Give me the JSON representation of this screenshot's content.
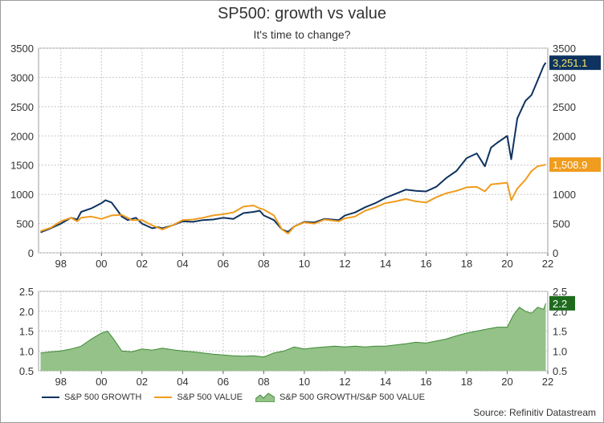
{
  "title": "SP500: growth vs value",
  "subtitle": "It's time to change?",
  "source": "Source: Refinitiv Datastream",
  "colors": {
    "growth": "#0e3360",
    "value": "#f09c1e",
    "ratio_fill": "#94c288",
    "ratio_line": "#3d8a34",
    "grid": "#c8c8c8"
  },
  "legend": {
    "growth": "S&P 500 GROWTH",
    "value": "S&P 500 VALUE",
    "ratio": "S&P 500 GROWTH/S&P 500 VALUE"
  },
  "badges": {
    "growth": "3,251.1",
    "value": "1,508.9",
    "ratio": "2.2"
  },
  "chart_data": [
    {
      "type": "line",
      "x_tick_labels": [
        "98",
        "00",
        "02",
        "04",
        "06",
        "08",
        "10",
        "12",
        "14",
        "16",
        "18",
        "20",
        "22"
      ],
      "x_ticks": [
        1998,
        2000,
        2002,
        2004,
        2006,
        2008,
        2010,
        2012,
        2014,
        2016,
        2018,
        2020,
        2022
      ],
      "xlim": [
        1996.9,
        2022.0
      ],
      "ylim": [
        0,
        3500
      ],
      "y_ticks": [
        0,
        500,
        1000,
        1500,
        2000,
        2500,
        3000,
        3500
      ],
      "grid": true,
      "series": [
        {
          "name": "S&P 500 GROWTH",
          "x": [
            1997.0,
            1997.5,
            1998.0,
            1998.5,
            1998.8,
            1999.0,
            1999.5,
            2000.0,
            2000.2,
            2000.5,
            2000.8,
            2001.0,
            2001.3,
            2001.7,
            2002.0,
            2002.5,
            2002.8,
            2003.0,
            2003.5,
            2004.0,
            2004.5,
            2005.0,
            2005.5,
            2006.0,
            2006.5,
            2007.0,
            2007.5,
            2007.8,
            2008.0,
            2008.5,
            2008.9,
            2009.2,
            2009.5,
            2010.0,
            2010.5,
            2011.0,
            2011.7,
            2012.0,
            2012.5,
            2013.0,
            2013.5,
            2014.0,
            2014.5,
            2015.0,
            2015.5,
            2016.0,
            2016.5,
            2017.0,
            2017.5,
            2018.0,
            2018.5,
            2018.9,
            2019.2,
            2019.5,
            2020.0,
            2020.2,
            2020.5,
            2020.9,
            2021.2,
            2021.5,
            2021.8,
            2021.9
          ],
          "values": [
            350,
            420,
            500,
            600,
            570,
            700,
            760,
            850,
            900,
            860,
            720,
            620,
            560,
            600,
            500,
            420,
            440,
            420,
            470,
            540,
            530,
            560,
            570,
            600,
            580,
            680,
            700,
            720,
            640,
            560,
            400,
            360,
            450,
            530,
            520,
            580,
            560,
            640,
            690,
            780,
            850,
            940,
            1010,
            1080,
            1060,
            1050,
            1130,
            1280,
            1400,
            1620,
            1700,
            1480,
            1800,
            1880,
            2000,
            1600,
            2300,
            2600,
            2700,
            2950,
            3200,
            3251.1
          ]
        },
        {
          "name": "S&P 500 VALUE",
          "x": [
            1997.0,
            1997.5,
            1998.0,
            1998.5,
            1998.8,
            1999.0,
            1999.5,
            2000.0,
            2000.5,
            2001.0,
            2001.5,
            2002.0,
            2002.5,
            2002.8,
            2003.0,
            2003.5,
            2004.0,
            2004.5,
            2005.0,
            2005.5,
            2006.0,
            2006.5,
            2007.0,
            2007.5,
            2007.8,
            2008.0,
            2008.5,
            2008.9,
            2009.2,
            2009.5,
            2010.0,
            2010.5,
            2011.0,
            2011.7,
            2012.0,
            2012.5,
            2013.0,
            2013.5,
            2014.0,
            2014.5,
            2015.0,
            2015.5,
            2016.0,
            2016.5,
            2017.0,
            2017.5,
            2018.0,
            2018.5,
            2018.9,
            2019.2,
            2019.5,
            2020.0,
            2020.2,
            2020.5,
            2020.9,
            2021.2,
            2021.5,
            2021.8,
            2021.9
          ],
          "values": [
            370,
            430,
            540,
            600,
            540,
            600,
            620,
            580,
            640,
            650,
            560,
            560,
            470,
            430,
            400,
            470,
            560,
            570,
            600,
            640,
            660,
            690,
            790,
            810,
            760,
            740,
            640,
            400,
            330,
            450,
            520,
            500,
            570,
            540,
            590,
            620,
            720,
            780,
            850,
            880,
            920,
            880,
            860,
            950,
            1020,
            1060,
            1120,
            1130,
            1050,
            1170,
            1180,
            1200,
            900,
            1100,
            1250,
            1400,
            1480,
            1500,
            1508.9
          ]
        }
      ]
    },
    {
      "type": "area",
      "x_tick_labels": [
        "98",
        "00",
        "02",
        "04",
        "06",
        "08",
        "10",
        "12",
        "14",
        "16",
        "18",
        "20",
        "22"
      ],
      "x_ticks": [
        1998,
        2000,
        2002,
        2004,
        2006,
        2008,
        2010,
        2012,
        2014,
        2016,
        2018,
        2020,
        2022
      ],
      "xlim": [
        1996.9,
        2022.0
      ],
      "ylim": [
        0.5,
        2.5
      ],
      "y_ticks": [
        0.5,
        1.0,
        1.5,
        2.0,
        2.5
      ],
      "grid": true,
      "series": [
        {
          "name": "S&P 500 GROWTH/S&P 500 VALUE",
          "x": [
            1997.0,
            1997.5,
            1998.0,
            1998.5,
            1999.0,
            1999.5,
            2000.0,
            2000.3,
            2000.6,
            2001.0,
            2001.5,
            2002.0,
            2002.5,
            2003.0,
            2003.5,
            2004.0,
            2004.5,
            2005.0,
            2005.5,
            2006.0,
            2006.5,
            2007.0,
            2007.5,
            2008.0,
            2008.5,
            2009.0,
            2009.5,
            2010.0,
            2010.5,
            2011.0,
            2011.5,
            2012.0,
            2012.5,
            2013.0,
            2013.5,
            2014.0,
            2014.5,
            2015.0,
            2015.5,
            2016.0,
            2016.5,
            2017.0,
            2017.5,
            2018.0,
            2018.5,
            2019.0,
            2019.5,
            2020.0,
            2020.3,
            2020.6,
            2020.9,
            2021.2,
            2021.5,
            2021.8,
            2021.9
          ],
          "values": [
            0.95,
            0.98,
            1.0,
            1.05,
            1.12,
            1.3,
            1.45,
            1.5,
            1.3,
            1.0,
            0.98,
            1.05,
            1.02,
            1.07,
            1.03,
            1.0,
            0.98,
            0.95,
            0.92,
            0.9,
            0.88,
            0.87,
            0.88,
            0.85,
            0.95,
            1.0,
            1.1,
            1.05,
            1.08,
            1.1,
            1.12,
            1.1,
            1.12,
            1.1,
            1.12,
            1.12,
            1.15,
            1.18,
            1.22,
            1.2,
            1.25,
            1.3,
            1.38,
            1.45,
            1.5,
            1.55,
            1.6,
            1.6,
            1.9,
            2.1,
            2.0,
            1.95,
            2.1,
            2.05,
            2.2
          ]
        }
      ]
    }
  ]
}
